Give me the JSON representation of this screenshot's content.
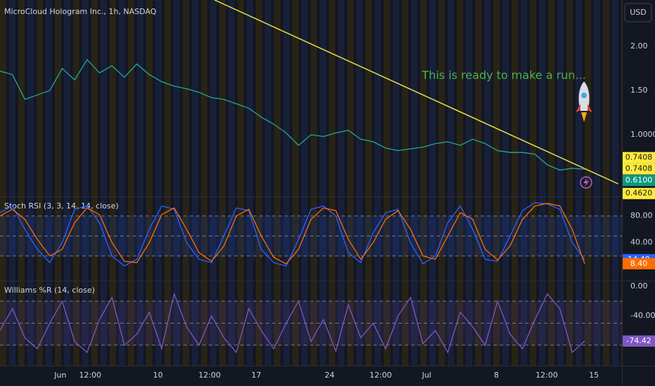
{
  "chart_data": [
    {
      "type": "line",
      "title": "MicroCloud Hologram Inc., 1h, NASDAQ",
      "currency": "USD",
      "annotation": "This is ready to make a run...",
      "ylim": [
        0.317,
        2.524
      ],
      "xlim": [
        0,
        100
      ],
      "yticks": [
        {
          "value": 2,
          "label": "2.00"
        },
        {
          "value": 1.5,
          "label": "1.50"
        },
        {
          "value": 1,
          "label": "1.0000"
        }
      ],
      "x": [
        0,
        2,
        4,
        6,
        8,
        10,
        12,
        14,
        16,
        18,
        20,
        22,
        24,
        26,
        28,
        30,
        32,
        34,
        36,
        38,
        40,
        42,
        44,
        46,
        48,
        50,
        52,
        54,
        56,
        58,
        60,
        62,
        64,
        66,
        68,
        70,
        72,
        74,
        76,
        78,
        80,
        82,
        84,
        86,
        88,
        90,
        92,
        94
      ],
      "series": [
        {
          "color": "#26a69a",
          "values": [
            1.72,
            1.68,
            1.4,
            1.45,
            1.5,
            1.75,
            1.62,
            1.85,
            1.7,
            1.78,
            1.65,
            1.8,
            1.68,
            1.6,
            1.55,
            1.52,
            1.48,
            1.42,
            1.4,
            1.35,
            1.3,
            1.2,
            1.12,
            1.02,
            0.88,
            1.0,
            0.98,
            1.02,
            1.05,
            0.95,
            0.92,
            0.85,
            0.82,
            0.84,
            0.86,
            0.9,
            0.92,
            0.88,
            0.95,
            0.9,
            0.82,
            0.8,
            0.8,
            0.78,
            0.66,
            0.6,
            0.62,
            0.61
          ]
        }
      ],
      "trendline": {
        "x": [
          34.5,
          99.4
        ],
        "y": [
          2.524,
          0.444
        ],
        "color": "#e8e04a"
      },
      "price_labels": [
        {
          "value": 0.7408,
          "label": "0.7408",
          "color": "#ffeb3b"
        },
        {
          "value": 0.7408,
          "label": "0.7408",
          "color": "#ffeb3b"
        },
        {
          "value": 0.61,
          "label": "0.6100",
          "color": "#089981"
        },
        {
          "value": 0.462,
          "label": "0.4620",
          "color": "#ffeb3b"
        }
      ]
    },
    {
      "type": "line",
      "title": "Stoch RSI (3, 3, 14, 14, close)",
      "ylim": [
        -15,
        106
      ],
      "xlim": [
        0,
        100
      ],
      "yticks": [
        {
          "value": 80,
          "label": "80.00"
        },
        {
          "value": 40,
          "label": "40.00"
        }
      ],
      "hlines": [
        80,
        50,
        20
      ],
      "band": [
        20,
        80
      ],
      "band_color": "#2962ff",
      "x": [
        0,
        2,
        4,
        6,
        8,
        10,
        12,
        14,
        16,
        18,
        20,
        22,
        24,
        26,
        28,
        30,
        32,
        34,
        36,
        38,
        40,
        42,
        44,
        46,
        48,
        50,
        52,
        54,
        56,
        58,
        60,
        62,
        64,
        66,
        68,
        70,
        72,
        74,
        76,
        78,
        80,
        82,
        84,
        86,
        88,
        90,
        92,
        94
      ],
      "series": [
        {
          "color": "#2962ff",
          "values": [
            85,
            95,
            60,
            30,
            10,
            40,
            90,
            95,
            70,
            20,
            5,
            15,
            60,
            95,
            90,
            40,
            15,
            10,
            50,
            92,
            88,
            30,
            10,
            5,
            45,
            90,
            95,
            80,
            25,
            10,
            55,
            85,
            90,
            40,
            8,
            20,
            70,
            95,
            60,
            15,
            12,
            50,
            88,
            100,
            98,
            90,
            40,
            14.4
          ],
          "last_label": {
            "value": 14.4,
            "label": "14.40"
          }
        },
        {
          "color": "#ff6d00",
          "values": [
            80,
            90,
            75,
            45,
            20,
            30,
            70,
            92,
            82,
            40,
            12,
            10,
            40,
            82,
            92,
            60,
            25,
            12,
            35,
            80,
            90,
            50,
            18,
            8,
            30,
            75,
            92,
            88,
            45,
            15,
            40,
            75,
            88,
            60,
            20,
            15,
            50,
            85,
            75,
            30,
            14,
            35,
            75,
            95,
            99,
            95,
            60,
            8.4
          ],
          "last_label": {
            "value": 8.4,
            "label": "8.40"
          }
        }
      ]
    },
    {
      "type": "line",
      "title": "Williams %R (14, close)",
      "ylim": [
        -107,
        5
      ],
      "xlim": [
        0,
        100
      ],
      "yticks": [
        {
          "value": 0,
          "label": "0.00"
        },
        {
          "value": -40,
          "label": "-40.00"
        }
      ],
      "hlines": [
        -20,
        -50,
        -80
      ],
      "band": [
        -80,
        -20
      ],
      "band_color": "#7e57c2",
      "xticks": [
        {
          "value": 9.7,
          "label": "Jun"
        },
        {
          "value": 14.5,
          "label": "12:00"
        },
        {
          "value": 25.4,
          "label": "10"
        },
        {
          "value": 33.7,
          "label": "12:00"
        },
        {
          "value": 41.2,
          "label": "17"
        },
        {
          "value": 53,
          "label": "24"
        },
        {
          "value": 61.2,
          "label": "12:00"
        },
        {
          "value": 68.6,
          "label": "Jul"
        },
        {
          "value": 79.8,
          "label": "8"
        },
        {
          "value": 87.9,
          "label": "12:00"
        },
        {
          "value": 95.5,
          "label": "15"
        }
      ],
      "x": [
        0,
        2,
        4,
        6,
        8,
        10,
        12,
        14,
        16,
        18,
        20,
        22,
        24,
        26,
        28,
        30,
        32,
        34,
        36,
        38,
        40,
        42,
        44,
        46,
        48,
        50,
        52,
        54,
        56,
        58,
        60,
        62,
        64,
        66,
        68,
        70,
        72,
        74,
        76,
        78,
        80,
        82,
        84,
        86,
        88,
        90,
        92,
        94
      ],
      "series": [
        {
          "color": "#7e57c2",
          "values": [
            -60,
            -30,
            -70,
            -85,
            -50,
            -20,
            -75,
            -90,
            -45,
            -15,
            -80,
            -65,
            -35,
            -85,
            -10,
            -55,
            -80,
            -40,
            -70,
            -90,
            -30,
            -60,
            -85,
            -50,
            -20,
            -75,
            -45,
            -88,
            -25,
            -70,
            -50,
            -85,
            -40,
            -15,
            -78,
            -60,
            -90,
            -35,
            -55,
            -80,
            -20,
            -65,
            -85,
            -45,
            -10,
            -30,
            -90,
            -74.42
          ],
          "last_label": {
            "value": -74.42,
            "label": "-74.42"
          }
        }
      ]
    }
  ]
}
